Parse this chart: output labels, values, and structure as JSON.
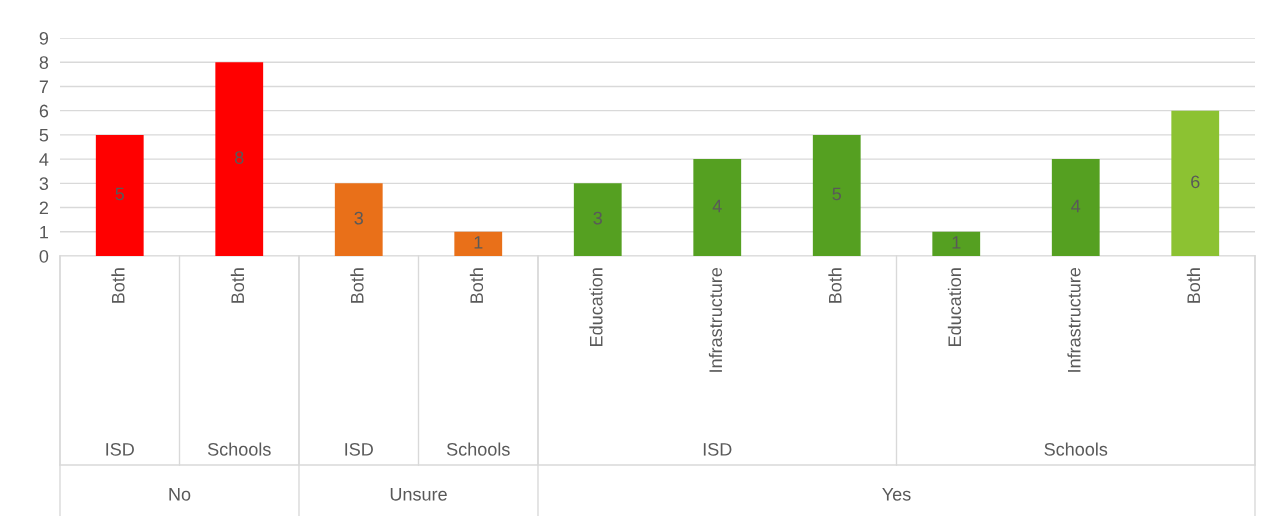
{
  "chart_data": {
    "type": "bar",
    "categories": [
      "Both",
      "Both",
      "Both",
      "Both",
      "Education",
      "Infrastructure",
      "Both",
      "Education",
      "Infrastructure",
      "Both"
    ],
    "values": [
      5,
      8,
      3,
      1,
      3,
      4,
      5,
      1,
      4,
      6
    ],
    "colors": [
      "#ff0000",
      "#ff0000",
      "#e97019",
      "#e97019",
      "#55a021",
      "#55a021",
      "#55a021",
      "#55a021",
      "#55a021",
      "#8cc232"
    ],
    "ylim": [
      0,
      9
    ],
    "yticks": [
      0,
      1,
      2,
      3,
      4,
      5,
      6,
      7,
      8,
      9
    ],
    "grid": "y",
    "data_labels": true,
    "annotations": [
      "ISD",
      "Schools",
      "ISD",
      "Schools",
      "ISD",
      "Schools",
      "No",
      "Unsure",
      "Yes"
    ]
  }
}
